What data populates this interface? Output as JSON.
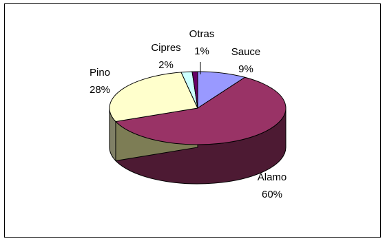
{
  "chart_data": {
    "type": "pie",
    "three_d": true,
    "legend": "none",
    "slices": [
      {
        "name": "Sauce",
        "value": 9,
        "label": "9%",
        "color": "#9999ff"
      },
      {
        "name": "Alamo",
        "value": 60,
        "label": "60%",
        "color": "#993366"
      },
      {
        "name": "Pino",
        "value": 28,
        "label": "28%",
        "color": "#ffffcc"
      },
      {
        "name": "Cipres",
        "value": 2,
        "label": "2%",
        "color": "#ccffff"
      },
      {
        "name": "Otras",
        "value": 1,
        "label": "1%",
        "color": "#660066"
      }
    ]
  }
}
